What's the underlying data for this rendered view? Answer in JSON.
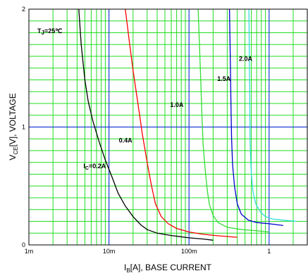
{
  "chart_data": {
    "type": "line",
    "x_scale": "log",
    "xlim": [
      0.001,
      3
    ],
    "ylim": [
      0,
      2
    ],
    "grid": true,
    "x_ticks": [
      {
        "value": 0.001,
        "label": "1m"
      },
      {
        "value": 0.01,
        "label": "10m"
      },
      {
        "value": 0.1,
        "label": "100m"
      },
      {
        "value": 1,
        "label": "1"
      }
    ],
    "y_ticks": [
      {
        "value": 0,
        "label": "0"
      },
      {
        "value": 1,
        "label": "1"
      },
      {
        "value": 2,
        "label": "2"
      }
    ],
    "xlabel": {
      "main": "I",
      "sub": "B",
      "rest": "[A], BASE CURRENT"
    },
    "ylabel": {
      "main": "V",
      "sub": "CE",
      "rest": "[V], VOLTAGE"
    },
    "annotation": {
      "main": "T",
      "sub": "J",
      "rest": "=25℃"
    },
    "series": [
      {
        "name": {
          "main": "I",
          "sub": "C",
          "rest": "=0.2A"
        },
        "color": "#000000",
        "points": [
          [
            0.0042,
            2.0
          ],
          [
            0.0045,
            1.7
          ],
          [
            0.005,
            1.4
          ],
          [
            0.0055,
            1.22
          ],
          [
            0.0063,
            1.05
          ],
          [
            0.0075,
            0.88
          ],
          [
            0.009,
            0.72
          ],
          [
            0.011,
            0.57
          ],
          [
            0.013,
            0.44
          ],
          [
            0.016,
            0.33
          ],
          [
            0.02,
            0.24
          ],
          [
            0.025,
            0.17
          ],
          [
            0.03,
            0.13
          ],
          [
            0.04,
            0.1
          ],
          [
            0.06,
            0.08
          ],
          [
            0.1,
            0.06
          ],
          [
            0.15,
            0.05
          ],
          [
            0.2,
            0.04
          ]
        ]
      },
      {
        "name": "0.4A",
        "color": "#ff0000",
        "points": [
          [
            0.016,
            2.0
          ],
          [
            0.018,
            1.72
          ],
          [
            0.02,
            1.48
          ],
          [
            0.023,
            1.2
          ],
          [
            0.026,
            0.95
          ],
          [
            0.03,
            0.7
          ],
          [
            0.034,
            0.5
          ],
          [
            0.038,
            0.35
          ],
          [
            0.045,
            0.24
          ],
          [
            0.055,
            0.18
          ],
          [
            0.07,
            0.14
          ],
          [
            0.1,
            0.11
          ],
          [
            0.15,
            0.09
          ],
          [
            0.25,
            0.075
          ],
          [
            0.4,
            0.065
          ]
        ]
      },
      {
        "name": "1.0A",
        "color": "#33dd33",
        "points": [
          [
            0.13,
            2.0
          ],
          [
            0.135,
            1.7
          ],
          [
            0.14,
            1.4
          ],
          [
            0.145,
            1.1
          ],
          [
            0.15,
            0.85
          ],
          [
            0.16,
            0.62
          ],
          [
            0.17,
            0.45
          ],
          [
            0.18,
            0.34
          ],
          [
            0.2,
            0.25
          ],
          [
            0.23,
            0.19
          ],
          [
            0.3,
            0.15
          ],
          [
            0.45,
            0.13
          ],
          [
            0.7,
            0.12
          ],
          [
            1.0,
            0.11
          ]
        ]
      },
      {
        "name": "1.5A",
        "color": "#0000cc",
        "points": [
          [
            0.32,
            2.0
          ],
          [
            0.325,
            1.75
          ],
          [
            0.33,
            1.45
          ],
          [
            0.335,
            1.15
          ],
          [
            0.34,
            0.9
          ],
          [
            0.35,
            0.68
          ],
          [
            0.37,
            0.5
          ],
          [
            0.4,
            0.35
          ],
          [
            0.45,
            0.26
          ],
          [
            0.55,
            0.21
          ],
          [
            0.7,
            0.19
          ],
          [
            1.0,
            0.18
          ],
          [
            1.5,
            0.165
          ]
        ]
      },
      {
        "name": "2.0A",
        "color": "#33dddd",
        "points": [
          [
            0.56,
            2.0
          ],
          [
            0.565,
            1.7
          ],
          [
            0.57,
            1.4
          ],
          [
            0.575,
            1.1
          ],
          [
            0.58,
            0.85
          ],
          [
            0.6,
            0.6
          ],
          [
            0.63,
            0.45
          ],
          [
            0.68,
            0.35
          ],
          [
            0.78,
            0.28
          ],
          [
            0.9,
            0.24
          ],
          [
            1.1,
            0.22
          ],
          [
            1.5,
            0.21
          ],
          [
            2.2,
            0.2
          ]
        ]
      }
    ],
    "label_anchors": [
      [
        0.0048,
        0.65
      ],
      [
        0.0133,
        0.87
      ],
      [
        0.058,
        1.17
      ],
      [
        0.225,
        1.39
      ],
      [
        0.42,
        1.56
      ]
    ]
  }
}
